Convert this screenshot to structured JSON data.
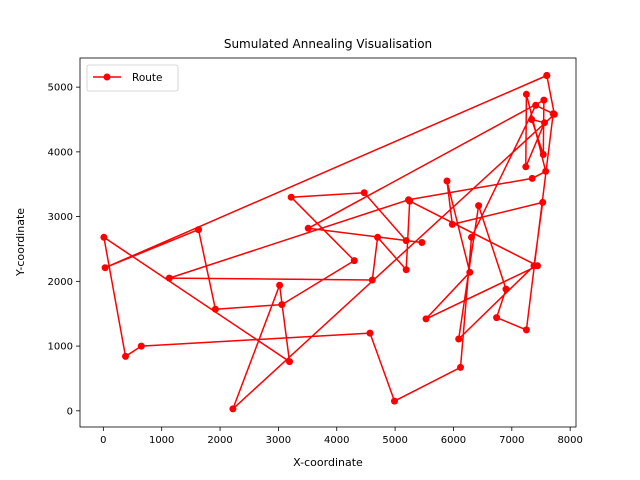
{
  "chart_data": {
    "type": "line",
    "title": "Sumulated Annealing Visualisation",
    "xlabel": "X-coordinate",
    "ylabel": "Y-coordinate",
    "xlim": [
      -400,
      8100
    ],
    "ylim": [
      -250,
      5450
    ],
    "xticks": [
      0,
      1000,
      2000,
      3000,
      4000,
      5000,
      6000,
      7000,
      8000
    ],
    "yticks": [
      0,
      1000,
      2000,
      3000,
      4000,
      5000
    ],
    "grid": false,
    "legend": {
      "position": "top-left",
      "entries": [
        "Route"
      ]
    },
    "series": [
      {
        "name": "Route",
        "color": "#ff0000",
        "marker": "circle",
        "x": [
          7600,
          30,
          1630,
          1920,
          3060,
          4300,
          3220,
          4470,
          5190,
          5460,
          3510,
          7550,
          7540,
          7340,
          7560,
          7240,
          7250,
          7580,
          7350,
          5230,
          1130,
          4610,
          4700,
          5190,
          5250,
          7440,
          5530,
          6280,
          5890,
          5980,
          7530,
          7380,
          6090,
          6430,
          6900,
          6740,
          7250,
          7710,
          7410,
          6310,
          6120,
          4990,
          4570,
          650,
          380,
          10,
          3190,
          3020,
          2220,
          7730,
          7600
        ],
        "y": [
          5180,
          2210,
          2800,
          1570,
          1640,
          2320,
          3300,
          3370,
          2630,
          2600,
          2820,
          4800,
          3960,
          4500,
          4450,
          3770,
          4890,
          3700,
          3590,
          3260,
          2050,
          2020,
          2680,
          2180,
          3240,
          2240,
          1420,
          2140,
          3550,
          2880,
          3220,
          2240,
          1110,
          3170,
          1880,
          1440,
          1250,
          4590,
          4720,
          2680,
          670,
          150,
          1200,
          1000,
          840,
          2680,
          760,
          1940,
          30,
          4580,
          5180
        ]
      }
    ]
  }
}
